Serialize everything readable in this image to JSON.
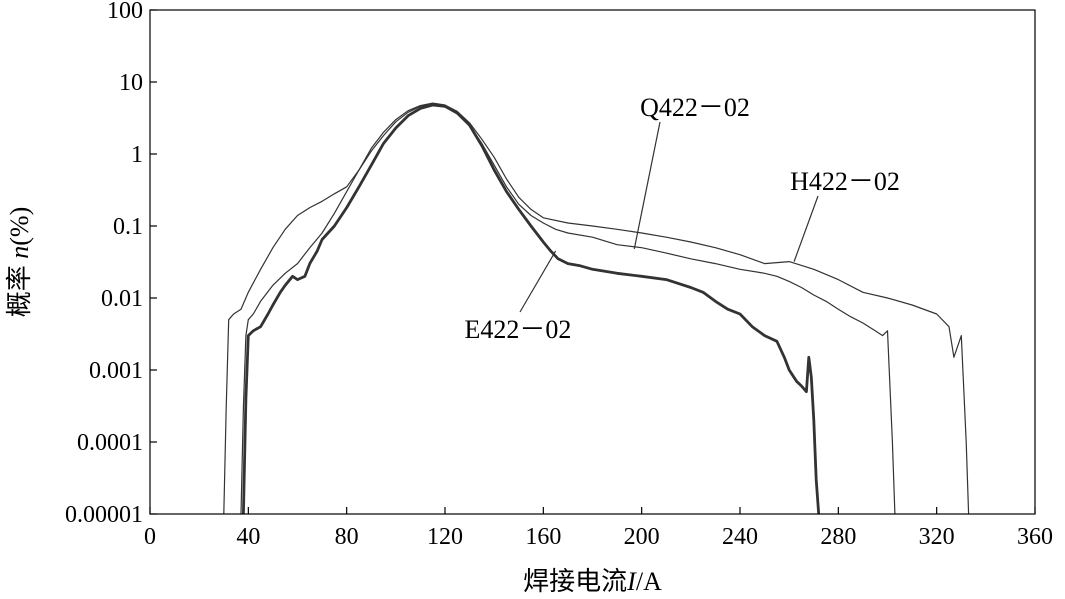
{
  "chart_data": {
    "type": "line",
    "title": "",
    "xlabel": "焊接电流I/A",
    "xlabel_parts": {
      "prefix": "焊接电流",
      "variable": "I",
      "suffix": "/A"
    },
    "ylabel": "概率 n(%)",
    "ylabel_parts": {
      "prefix": "概率 ",
      "variable": "n",
      "suffix": "(%)"
    },
    "x_scale": "linear",
    "y_scale": "log",
    "xlim": [
      0,
      360
    ],
    "ylim": [
      1e-05,
      100
    ],
    "x_ticks": [
      0,
      40,
      80,
      120,
      160,
      200,
      240,
      280,
      320,
      360
    ],
    "x_tick_labels": [
      "0",
      "40",
      "80",
      "120",
      "160",
      "200",
      "240",
      "280",
      "320",
      "360"
    ],
    "y_ticks": [
      1e-05,
      0.0001,
      0.001,
      0.01,
      0.1,
      1,
      10,
      100
    ],
    "y_tick_labels": [
      "0.00001",
      "0.0001",
      "0.001",
      "0.01",
      "0.1",
      "1",
      "10",
      "100"
    ],
    "grid": false,
    "legend": "none",
    "series": [
      {
        "name": "Q422－02",
        "line_width": "thin",
        "x": [
          37,
          38,
          39,
          40,
          42,
          45,
          50,
          55,
          60,
          65,
          70,
          75,
          80,
          85,
          90,
          95,
          100,
          105,
          110,
          115,
          120,
          125,
          130,
          135,
          140,
          145,
          150,
          155,
          160,
          165,
          170,
          180,
          190,
          200,
          210,
          220,
          230,
          240,
          250,
          255,
          260,
          265,
          270,
          275,
          280,
          285,
          290,
          295,
          298,
          300,
          302,
          303
        ],
        "y": [
          1e-05,
          0.0003,
          0.003,
          0.005,
          0.006,
          0.009,
          0.015,
          0.022,
          0.03,
          0.05,
          0.08,
          0.15,
          0.3,
          0.6,
          1.1,
          1.8,
          2.8,
          3.8,
          4.6,
          4.9,
          4.6,
          3.7,
          2.5,
          1.4,
          0.7,
          0.35,
          0.2,
          0.14,
          0.11,
          0.09,
          0.08,
          0.07,
          0.055,
          0.05,
          0.042,
          0.035,
          0.03,
          0.025,
          0.022,
          0.02,
          0.017,
          0.014,
          0.011,
          0.009,
          0.007,
          0.0055,
          0.0045,
          0.0035,
          0.003,
          0.0035,
          0.0001,
          1e-05
        ]
      },
      {
        "name": "H422－02",
        "line_width": "thin",
        "x": [
          30,
          31,
          32,
          34,
          37,
          40,
          45,
          50,
          55,
          60,
          65,
          70,
          75,
          80,
          85,
          90,
          95,
          100,
          105,
          110,
          115,
          120,
          125,
          130,
          135,
          140,
          145,
          150,
          155,
          160,
          170,
          180,
          190,
          200,
          210,
          220,
          230,
          240,
          250,
          260,
          270,
          280,
          290,
          300,
          310,
          320,
          325,
          327,
          330,
          332,
          333
        ],
        "y": [
          1e-05,
          0.0003,
          0.005,
          0.006,
          0.007,
          0.012,
          0.025,
          0.05,
          0.09,
          0.14,
          0.18,
          0.22,
          0.28,
          0.35,
          0.6,
          1.2,
          2.0,
          3.0,
          4.0,
          4.7,
          5.1,
          4.8,
          3.9,
          2.7,
          1.6,
          0.9,
          0.45,
          0.25,
          0.17,
          0.13,
          0.11,
          0.1,
          0.09,
          0.08,
          0.07,
          0.06,
          0.05,
          0.04,
          0.03,
          0.032,
          0.025,
          0.018,
          0.012,
          0.01,
          0.008,
          0.006,
          0.004,
          0.0015,
          0.003,
          0.0001,
          1e-05
        ]
      },
      {
        "name": "E422－02",
        "line_width": "thick",
        "x": [
          38,
          39,
          40,
          42,
          45,
          48,
          50,
          53,
          55,
          58,
          60,
          63,
          65,
          68,
          70,
          75,
          80,
          85,
          90,
          95,
          100,
          105,
          110,
          115,
          120,
          125,
          130,
          135,
          140,
          145,
          150,
          155,
          160,
          163,
          166,
          170,
          175,
          180,
          190,
          200,
          210,
          220,
          225,
          230,
          235,
          240,
          245,
          250,
          255,
          258,
          260,
          263,
          265,
          267,
          268,
          269,
          270,
          271,
          272
        ],
        "y": [
          1e-05,
          0.0004,
          0.003,
          0.0035,
          0.004,
          0.006,
          0.008,
          0.012,
          0.015,
          0.02,
          0.018,
          0.02,
          0.03,
          0.045,
          0.065,
          0.1,
          0.18,
          0.35,
          0.7,
          1.4,
          2.3,
          3.4,
          4.3,
          4.8,
          4.6,
          3.7,
          2.5,
          1.3,
          0.6,
          0.3,
          0.17,
          0.1,
          0.06,
          0.045,
          0.035,
          0.03,
          0.028,
          0.025,
          0.022,
          0.02,
          0.018,
          0.014,
          0.012,
          0.009,
          0.007,
          0.006,
          0.004,
          0.003,
          0.0025,
          0.0015,
          0.001,
          0.0007,
          0.0006,
          0.0005,
          0.0015,
          0.0008,
          0.0002,
          3e-05,
          1e-05
        ]
      }
    ],
    "annotations": [
      {
        "series": "Q422－02",
        "text": "Q422－02",
        "point": {
          "x": 197,
          "y": 0.048
        }
      },
      {
        "series": "H422－02",
        "text": "H422－02",
        "point": {
          "x": 262,
          "y": 0.032
        }
      },
      {
        "series": "E422－02",
        "text": "E422－02",
        "point": {
          "x": 165,
          "y": 0.045
        }
      }
    ],
    "colors": {
      "line": "#333333",
      "axis": "#000000",
      "background": "#ffffff"
    }
  }
}
